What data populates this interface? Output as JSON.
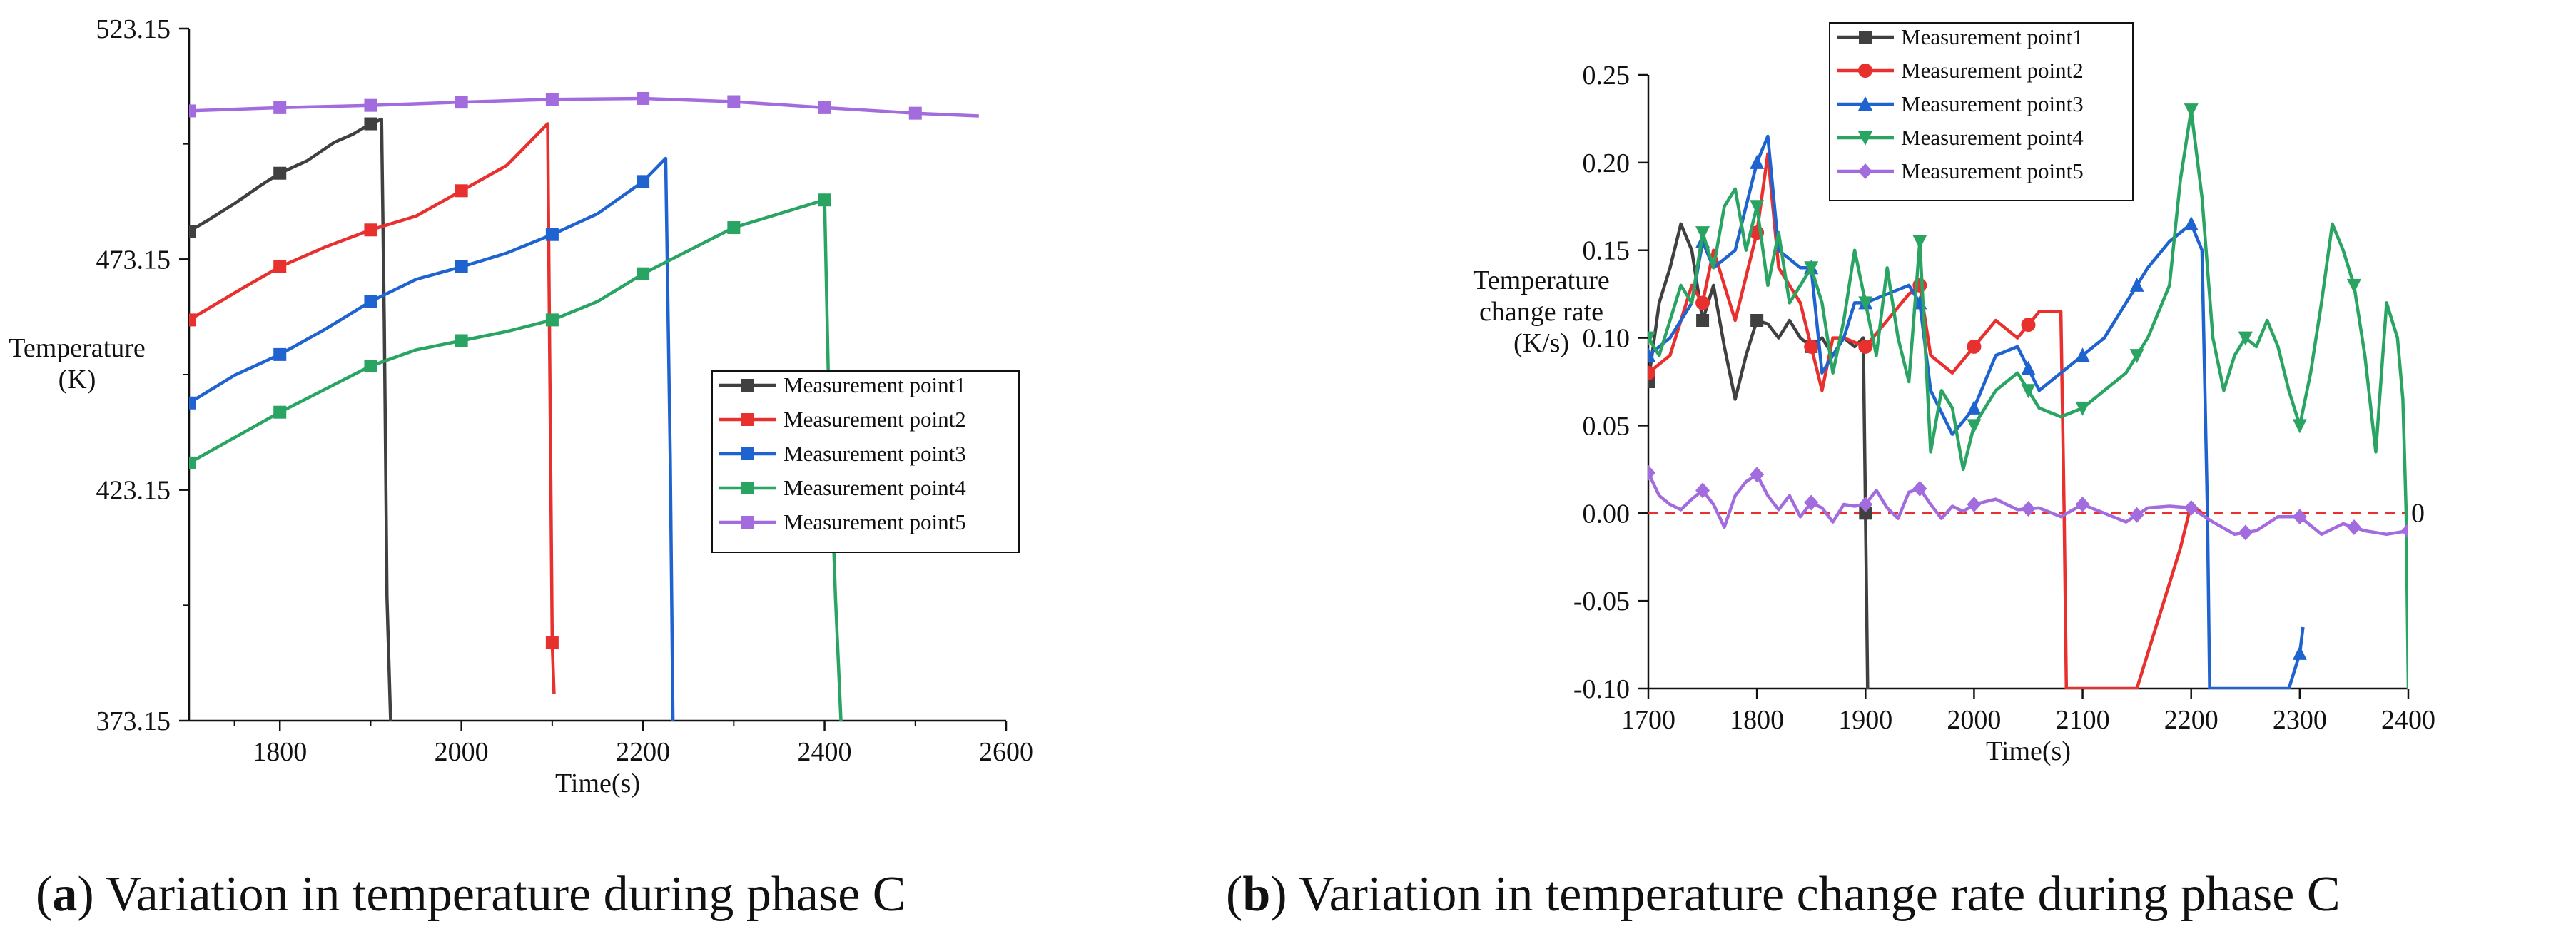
{
  "chart_data": [
    {
      "id": "a",
      "type": "line",
      "caption_letter": "a",
      "caption_text": "Variation in temperature during phase C",
      "xlabel": "Time(s)",
      "ylabel_lines": [
        "Temperature",
        "(K)"
      ],
      "xlim": [
        1700,
        2600
      ],
      "ylim": [
        373.15,
        523.15
      ],
      "xticks": [
        1800,
        2000,
        2200,
        2400,
        2600
      ],
      "yticks": [
        373.15,
        423.15,
        473.15,
        523.15
      ],
      "ytick_labels": [
        "373.15",
        "423.15",
        "473.15",
        "523.15"
      ],
      "legend_position": "center-right",
      "series": [
        {
          "name": "Measurement point1",
          "color": "#404040",
          "marker": "square",
          "x": [
            1700,
            1720,
            1750,
            1780,
            1800,
            1830,
            1860,
            1880,
            1900,
            1912,
            1915,
            1918,
            1922
          ],
          "y": [
            479.2,
            481.5,
            485.2,
            489.3,
            491.8,
            494.5,
            498.5,
            500.2,
            502.5,
            503.5,
            460.0,
            400.0,
            373.15
          ],
          "marker_x": [
            1700,
            1800,
            1900
          ]
        },
        {
          "name": "Measurement point2",
          "color": "#e8302e",
          "marker": "square",
          "x": [
            1700,
            1730,
            1760,
            1800,
            1850,
            1900,
            1950,
            2000,
            2050,
            2095,
            2100,
            2102
          ],
          "y": [
            460.0,
            463.5,
            467.0,
            471.5,
            475.8,
            479.5,
            482.5,
            488.0,
            493.5,
            502.5,
            390.0,
            379.0
          ],
          "marker_x": [
            1700,
            1800,
            1900,
            2000,
            2100
          ]
        },
        {
          "name": "Measurement point3",
          "color": "#1e63d0",
          "marker": "square",
          "x": [
            1700,
            1750,
            1800,
            1850,
            1900,
            1950,
            2000,
            2050,
            2100,
            2150,
            2200,
            2225,
            2230,
            2233
          ],
          "y": [
            442.0,
            448.0,
            452.5,
            458.0,
            464.0,
            468.8,
            471.5,
            474.5,
            478.5,
            483.0,
            490.0,
            495.0,
            430.0,
            373.15
          ],
          "marker_x": [
            1700,
            1800,
            1900,
            2000,
            2100,
            2200
          ]
        },
        {
          "name": "Measurement point4",
          "color": "#2aa463",
          "marker": "square",
          "x": [
            1700,
            1750,
            1800,
            1850,
            1900,
            1950,
            2000,
            2050,
            2100,
            2150,
            2200,
            2250,
            2300,
            2350,
            2400,
            2405,
            2412,
            2418
          ],
          "y": [
            429.0,
            434.5,
            440.0,
            445.0,
            450.0,
            453.5,
            455.5,
            457.5,
            460.0,
            464.0,
            470.0,
            475.0,
            480.0,
            483.0,
            486.0,
            440.0,
            400.0,
            373.15
          ],
          "marker_x": [
            1700,
            1800,
            1900,
            2000,
            2100,
            2200,
            2300,
            2400
          ]
        },
        {
          "name": "Measurement point5",
          "color": "#a36cde",
          "marker": "square",
          "x": [
            1700,
            1800,
            1900,
            2000,
            2100,
            2200,
            2300,
            2400,
            2500,
            2570
          ],
          "y": [
            505.3,
            506.0,
            506.5,
            507.2,
            507.8,
            508.0,
            507.3,
            506.0,
            504.8,
            504.2
          ],
          "marker_x": [
            1700,
            1800,
            1900,
            2000,
            2100,
            2200,
            2300,
            2400,
            2500
          ]
        }
      ]
    },
    {
      "id": "b",
      "type": "line",
      "caption_letter": "b",
      "caption_text": "Variation in temperature change rate during phase C",
      "xlabel": "Time(s)",
      "ylabel_lines": [
        "Temperature",
        "change rate",
        "(K/s)"
      ],
      "xlim": [
        1700,
        2400
      ],
      "ylim": [
        -0.1,
        0.25
      ],
      "xticks": [
        1700,
        1800,
        1900,
        2000,
        2100,
        2200,
        2300,
        2400
      ],
      "yticks": [
        -0.1,
        -0.05,
        0.0,
        0.05,
        0.1,
        0.15,
        0.2,
        0.25
      ],
      "ytick_labels": [
        "-0.10",
        "-0.05",
        "0.00",
        "0.05",
        "0.10",
        "0.15",
        "0.20",
        "0.25"
      ],
      "reference_line": {
        "y": 0,
        "label": "0",
        "color": "#e8302e"
      },
      "legend_position": "top-center",
      "series": [
        {
          "name": "Measurement point1",
          "color": "#404040",
          "marker": "square",
          "x": [
            1700,
            1710,
            1720,
            1730,
            1740,
            1750,
            1760,
            1770,
            1780,
            1790,
            1800,
            1810,
            1820,
            1830,
            1840,
            1850,
            1860,
            1870,
            1880,
            1890,
            1898,
            1900,
            1902
          ],
          "y": [
            0.075,
            0.12,
            0.14,
            0.165,
            0.15,
            0.11,
            0.13,
            0.095,
            0.065,
            0.09,
            0.11,
            0.108,
            0.1,
            0.11,
            0.1,
            0.095,
            0.1,
            0.09,
            0.1,
            0.095,
            0.1,
            0.0,
            -0.1
          ],
          "marker_x": [
            1700,
            1750,
            1800,
            1850,
            1900
          ]
        },
        {
          "name": "Measurement point2",
          "color": "#e8302e",
          "marker": "circle",
          "x": [
            1700,
            1720,
            1740,
            1750,
            1760,
            1780,
            1800,
            1810,
            1820,
            1840,
            1860,
            1870,
            1880,
            1900,
            1920,
            1940,
            1950,
            1960,
            1980,
            2000,
            2020,
            2040,
            2060,
            2080,
            2083,
            2085,
            2150,
            2170,
            2190,
            2200,
            2210
          ],
          "y": [
            0.08,
            0.09,
            0.13,
            0.12,
            0.15,
            0.11,
            0.16,
            0.205,
            0.14,
            0.12,
            0.07,
            0.1,
            0.1,
            0.095,
            0.11,
            0.125,
            0.13,
            0.09,
            0.08,
            0.095,
            0.11,
            0.1,
            0.115,
            0.115,
            0.0,
            -0.1,
            -0.1,
            -0.06,
            -0.02,
            0.005,
            0.0
          ],
          "marker_x": [
            1700,
            1750,
            1800,
            1850,
            1900,
            1950,
            2000,
            2050
          ]
        },
        {
          "name": "Measurement point3",
          "color": "#1e63d0",
          "marker": "triangle-up",
          "x": [
            1700,
            1720,
            1740,
            1750,
            1760,
            1780,
            1800,
            1810,
            1820,
            1840,
            1850,
            1860,
            1870,
            1880,
            1890,
            1900,
            1920,
            1940,
            1950,
            1960,
            1980,
            2000,
            2020,
            2040,
            2060,
            2080,
            2100,
            2120,
            2140,
            2160,
            2180,
            2200,
            2210,
            2215,
            2217,
            2290,
            2300,
            2303
          ],
          "y": [
            0.09,
            0.1,
            0.12,
            0.155,
            0.14,
            0.15,
            0.2,
            0.215,
            0.15,
            0.14,
            0.14,
            0.08,
            0.09,
            0.1,
            0.12,
            0.12,
            0.125,
            0.13,
            0.12,
            0.07,
            0.045,
            0.06,
            0.09,
            0.095,
            0.07,
            0.08,
            0.09,
            0.1,
            0.12,
            0.14,
            0.155,
            0.165,
            0.15,
            0.0,
            -0.1,
            -0.1,
            -0.08,
            -0.065
          ],
          "marker_x": [
            1700,
            1750,
            1800,
            1850,
            1900,
            1950,
            2000,
            2050,
            2100,
            2150,
            2200,
            2300
          ]
        },
        {
          "name": "Measurement point4",
          "color": "#2aa463",
          "marker": "triangle-down",
          "x": [
            1700,
            1710,
            1720,
            1730,
            1740,
            1750,
            1760,
            1770,
            1780,
            1790,
            1800,
            1810,
            1820,
            1830,
            1840,
            1850,
            1860,
            1870,
            1880,
            1890,
            1900,
            1910,
            1920,
            1930,
            1940,
            1950,
            1960,
            1970,
            1980,
            1990,
            2000,
            2020,
            2040,
            2060,
            2080,
            2100,
            2120,
            2140,
            2160,
            2180,
            2190,
            2200,
            2210,
            2220,
            2230,
            2240,
            2250,
            2260,
            2270,
            2280,
            2290,
            2300,
            2310,
            2320,
            2330,
            2340,
            2350,
            2360,
            2370,
            2380,
            2390,
            2395,
            2398,
            2400
          ],
          "y": [
            0.1,
            0.09,
            0.11,
            0.13,
            0.12,
            0.16,
            0.14,
            0.175,
            0.185,
            0.15,
            0.175,
            0.13,
            0.16,
            0.12,
            0.13,
            0.14,
            0.12,
            0.08,
            0.11,
            0.15,
            0.12,
            0.09,
            0.14,
            0.1,
            0.075,
            0.155,
            0.035,
            0.07,
            0.06,
            0.025,
            0.05,
            0.07,
            0.08,
            0.06,
            0.055,
            0.06,
            0.07,
            0.08,
            0.1,
            0.13,
            0.19,
            0.23,
            0.18,
            0.1,
            0.07,
            0.09,
            0.1,
            0.095,
            0.11,
            0.095,
            0.07,
            0.05,
            0.08,
            0.12,
            0.165,
            0.15,
            0.13,
            0.09,
            0.035,
            0.12,
            0.1,
            0.065,
            0.0,
            -0.1
          ],
          "marker_x": [
            1700,
            1750,
            1800,
            1850,
            1900,
            1950,
            2000,
            2050,
            2100,
            2150,
            2200,
            2250,
            2300,
            2350
          ]
        },
        {
          "name": "Measurement point5",
          "color": "#a36cde",
          "marker": "diamond",
          "x": [
            1700,
            1710,
            1720,
            1730,
            1740,
            1750,
            1760,
            1770,
            1780,
            1790,
            1800,
            1810,
            1820,
            1830,
            1840,
            1850,
            1860,
            1870,
            1880,
            1890,
            1900,
            1910,
            1920,
            1930,
            1940,
            1950,
            1960,
            1970,
            1980,
            1990,
            2000,
            2020,
            2040,
            2060,
            2080,
            2100,
            2120,
            2140,
            2160,
            2180,
            2200,
            2220,
            2240,
            2260,
            2280,
            2300,
            2320,
            2340,
            2360,
            2380,
            2400
          ],
          "y": [
            0.023,
            0.01,
            0.005,
            0.002,
            0.008,
            0.013,
            0.005,
            -0.008,
            0.01,
            0.018,
            0.022,
            0.01,
            0.002,
            0.01,
            -0.002,
            0.006,
            0.003,
            -0.005,
            0.005,
            0.004,
            0.005,
            0.013,
            0.003,
            -0.003,
            0.012,
            0.014,
            0.005,
            -0.003,
            0.004,
            0.001,
            0.005,
            0.008,
            0.002,
            0.003,
            -0.002,
            0.005,
            0.0,
            -0.005,
            0.003,
            0.004,
            0.003,
            -0.005,
            -0.012,
            -0.01,
            -0.002,
            -0.002,
            -0.012,
            -0.006,
            -0.01,
            -0.012,
            -0.01
          ],
          "marker_x": [
            1700,
            1750,
            1800,
            1850,
            1900,
            1950,
            2000,
            2050,
            2100,
            2150,
            2200,
            2250,
            2300,
            2350,
            2400
          ]
        }
      ]
    }
  ]
}
